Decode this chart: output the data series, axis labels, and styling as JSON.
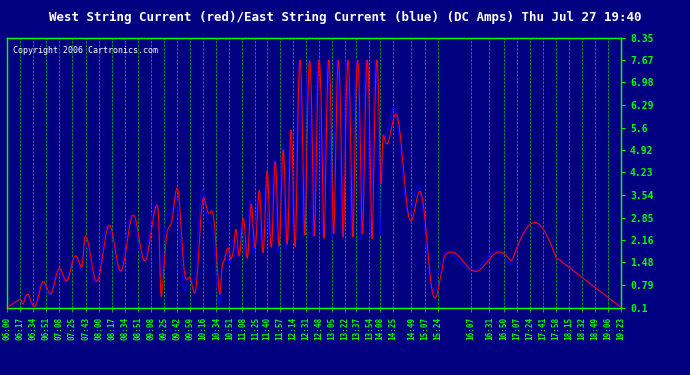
{
  "title": "West String Current (red)/East String Current (blue) (DC Amps) Thu Jul 27 19:40",
  "copyright": "Copyright 2006 Cartronics.com",
  "background_color": "#000080",
  "plot_bg_color": "#000080",
  "grid_color": "#00ff00",
  "line_color_west": "#ff0000",
  "line_color_east": "#0000ff",
  "title_color": "#ffffff",
  "copyright_color": "#ffffff",
  "tick_color": "#00ff00",
  "yticks": [
    0.1,
    0.79,
    1.48,
    2.16,
    2.85,
    3.54,
    4.23,
    4.92,
    5.6,
    6.29,
    6.98,
    7.67,
    8.35
  ],
  "ylim": [
    0.1,
    8.35
  ],
  "xtick_labels": [
    "06:00",
    "06:17",
    "06:34",
    "06:51",
    "07:08",
    "07:25",
    "07:43",
    "08:00",
    "08:17",
    "08:34",
    "08:51",
    "09:08",
    "09:25",
    "09:42",
    "09:59",
    "10:16",
    "10:34",
    "10:51",
    "11:08",
    "11:25",
    "11:40",
    "11:57",
    "12:14",
    "12:31",
    "12:48",
    "13:05",
    "13:22",
    "13:37",
    "13:54",
    "14:08",
    "14:25",
    "14:49",
    "15:07",
    "15:24",
    "16:07",
    "16:31",
    "16:50",
    "17:07",
    "17:24",
    "17:41",
    "17:58",
    "18:15",
    "18:32",
    "18:49",
    "19:06",
    "19:23"
  ]
}
